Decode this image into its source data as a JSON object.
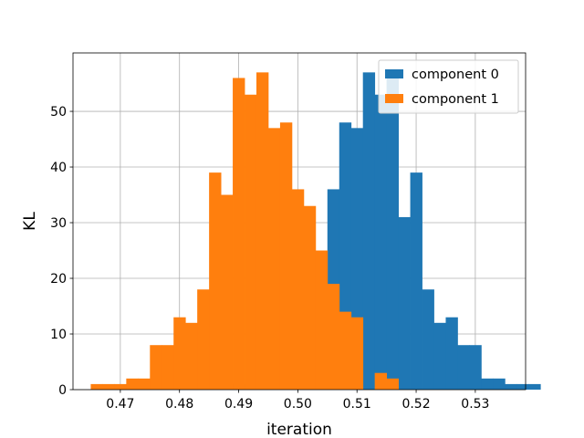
{
  "chart_data": {
    "type": "bar",
    "subtype": "histogram",
    "xlabel": "iteration",
    "ylabel": "KL",
    "xlim": [
      0.462,
      0.5385
    ],
    "ylim": [
      0,
      60.5
    ],
    "xticks": [
      0.47,
      0.48,
      0.49,
      0.5,
      0.51,
      0.52,
      0.53
    ],
    "xtick_labels": [
      "0.47",
      "0.48",
      "0.49",
      "0.50",
      "0.51",
      "0.52",
      "0.53"
    ],
    "yticks": [
      0,
      10,
      20,
      30,
      40,
      50
    ],
    "ytick_labels": [
      "0",
      "10",
      "20",
      "30",
      "40",
      "50"
    ],
    "grid": true,
    "legend_position": "top-right",
    "series": [
      {
        "name": "component 0",
        "color": "#1f77b4",
        "bin_start": 0.485,
        "bin_width": 0.002,
        "counts": [
          1,
          0,
          1,
          1,
          0,
          2,
          2,
          5,
          11,
          21,
          36,
          48,
          47,
          57,
          53,
          57,
          31,
          39,
          18,
          12,
          13,
          8,
          8,
          2,
          2,
          1,
          1,
          1
        ]
      },
      {
        "name": "component 1",
        "color": "#ff7f0e",
        "bin_start": 0.465,
        "bin_width": 0.002,
        "counts": [
          1,
          1,
          1,
          2,
          2,
          8,
          8,
          13,
          12,
          18,
          39,
          35,
          56,
          53,
          57,
          47,
          48,
          36,
          33,
          25,
          19,
          14,
          13,
          0,
          3,
          2
        ]
      }
    ]
  }
}
